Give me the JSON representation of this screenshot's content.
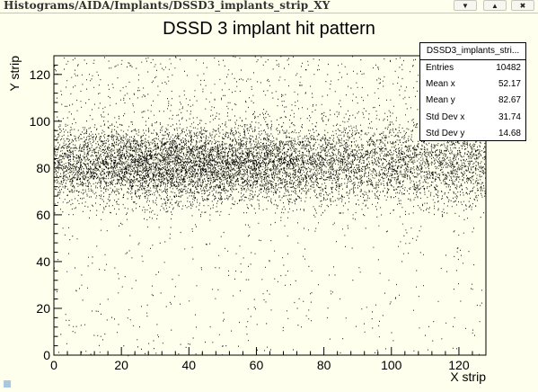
{
  "window": {
    "title": "Histograms/AIDA/Implants/DSSD3_implants_strip_XY",
    "buttons": [
      {
        "icon": "chevron-down-icon",
        "glyph": "▼"
      },
      {
        "icon": "chevron-up-icon",
        "glyph": "▲"
      },
      {
        "icon": "close-icon",
        "glyph": "✖"
      }
    ]
  },
  "stats": {
    "title": "DSSD3_implants_stri...",
    "rows": [
      {
        "name": "Entries",
        "value": "10482"
      },
      {
        "name": "Mean x",
        "value": "52.17"
      },
      {
        "name": "Mean y",
        "value": "82.67"
      },
      {
        "name": "Std Dev x",
        "value": "31.74"
      },
      {
        "name": "Std Dev y",
        "value": "14.68"
      }
    ]
  },
  "chart_data": {
    "type": "scatter",
    "title": "DSSD 3 implant hit pattern",
    "xlabel": "X strip",
    "ylabel": "Y strip",
    "xlim": [
      0,
      128
    ],
    "ylim": [
      0,
      128
    ],
    "x_ticks": [
      0,
      20,
      40,
      60,
      80,
      100,
      120
    ],
    "y_ticks": [
      0,
      20,
      40,
      60,
      80,
      100,
      120
    ],
    "grid": false,
    "legend": "top-right",
    "marker_color": "#000000",
    "entries": 10482,
    "distribution": {
      "core": {
        "x_range": [
          0,
          128
        ],
        "y_mean": 82,
        "y_sigma": 8,
        "x_peak": 40
      },
      "background": {
        "x_range": [
          0,
          128
        ],
        "y_range": [
          0,
          128
        ]
      }
    }
  }
}
